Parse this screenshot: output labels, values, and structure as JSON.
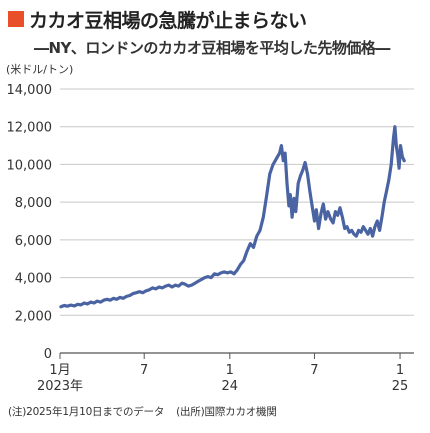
{
  "title": "カカオ豆相場の急騰が止まらない",
  "subtitle": "―NY、ロンドンのカカオ豆相場を平均した先物価格―",
  "note": "(注)2025年1月10日までのデータ",
  "source": "(出所)国際カカオ機関",
  "colors": {
    "title_marker": "#e8502a",
    "line": "#4a63a3",
    "grid": "#c8c8c8",
    "axis": "#555555"
  },
  "chart_data": {
    "type": "line",
    "title": "カカオ豆相場の急騰が止まらない",
    "subtitle": "―NY、ロンドンのカカオ豆相場を平均した先物価格―",
    "ylabel": "(米ドル/トン)",
    "xlabel": "",
    "ylim": [
      0,
      14000
    ],
    "y_ticks": [
      0,
      2000,
      4000,
      6000,
      8000,
      10000,
      12000,
      14000
    ],
    "y_tick_labels": [
      "0",
      "2,000",
      "4,000",
      "6,000",
      "8,000",
      "10,000",
      "12,000",
      "14,000"
    ],
    "xlim": [
      "2023-01-01",
      "2025-01-31"
    ],
    "x_ticks": [
      {
        "date": "2023-01-01",
        "label": "1月",
        "sublabel": "2023年"
      },
      {
        "date": "2023-07-01",
        "label": "7",
        "sublabel": ""
      },
      {
        "date": "2024-01-01",
        "label": "1",
        "sublabel": "24"
      },
      {
        "date": "2024-07-01",
        "label": "7",
        "sublabel": ""
      },
      {
        "date": "2025-01-01",
        "label": "1",
        "sublabel": "25"
      }
    ],
    "grid": "horizontal",
    "series": [
      {
        "points": [
          [
            "2023-01-03",
            2450
          ],
          [
            "2023-01-10",
            2520
          ],
          [
            "2023-01-17",
            2480
          ],
          [
            "2023-01-24",
            2540
          ],
          [
            "2023-02-01",
            2500
          ],
          [
            "2023-02-08",
            2580
          ],
          [
            "2023-02-15",
            2550
          ],
          [
            "2023-02-22",
            2650
          ],
          [
            "2023-03-01",
            2600
          ],
          [
            "2023-03-08",
            2700
          ],
          [
            "2023-03-15",
            2650
          ],
          [
            "2023-03-22",
            2750
          ],
          [
            "2023-03-29",
            2700
          ],
          [
            "2023-04-05",
            2800
          ],
          [
            "2023-04-12",
            2850
          ],
          [
            "2023-04-19",
            2800
          ],
          [
            "2023-04-26",
            2900
          ],
          [
            "2023-05-03",
            2850
          ],
          [
            "2023-05-10",
            2950
          ],
          [
            "2023-05-17",
            2900
          ],
          [
            "2023-05-24",
            3000
          ],
          [
            "2023-05-31",
            3050
          ],
          [
            "2023-06-07",
            3150
          ],
          [
            "2023-06-14",
            3200
          ],
          [
            "2023-06-21",
            3250
          ],
          [
            "2023-06-28",
            3200
          ],
          [
            "2023-07-05",
            3300
          ],
          [
            "2023-07-12",
            3350
          ],
          [
            "2023-07-19",
            3450
          ],
          [
            "2023-07-26",
            3400
          ],
          [
            "2023-08-02",
            3500
          ],
          [
            "2023-08-09",
            3450
          ],
          [
            "2023-08-16",
            3550
          ],
          [
            "2023-08-23",
            3600
          ],
          [
            "2023-08-30",
            3500
          ],
          [
            "2023-09-06",
            3600
          ],
          [
            "2023-09-13",
            3550
          ],
          [
            "2023-09-20",
            3700
          ],
          [
            "2023-09-27",
            3650
          ],
          [
            "2023-10-04",
            3550
          ],
          [
            "2023-10-11",
            3600
          ],
          [
            "2023-10-18",
            3700
          ],
          [
            "2023-10-25",
            3800
          ],
          [
            "2023-11-01",
            3900
          ],
          [
            "2023-11-08",
            4000
          ],
          [
            "2023-11-15",
            4050
          ],
          [
            "2023-11-22",
            4000
          ],
          [
            "2023-11-29",
            4200
          ],
          [
            "2023-12-06",
            4150
          ],
          [
            "2023-12-13",
            4250
          ],
          [
            "2023-12-20",
            4300
          ],
          [
            "2023-12-27",
            4250
          ],
          [
            "2024-01-03",
            4300
          ],
          [
            "2024-01-10",
            4200
          ],
          [
            "2024-01-17",
            4400
          ],
          [
            "2024-01-24",
            4700
          ],
          [
            "2024-01-31",
            4900
          ],
          [
            "2024-02-07",
            5400
          ],
          [
            "2024-02-14",
            5800
          ],
          [
            "2024-02-21",
            5600
          ],
          [
            "2024-02-28",
            6200
          ],
          [
            "2024-03-06",
            6500
          ],
          [
            "2024-03-13",
            7200
          ],
          [
            "2024-03-20",
            8300
          ],
          [
            "2024-03-27",
            9500
          ],
          [
            "2024-04-03",
            10000
          ],
          [
            "2024-04-10",
            10300
          ],
          [
            "2024-04-17",
            10600
          ],
          [
            "2024-04-21",
            11000
          ],
          [
            "2024-04-25",
            10200
          ],
          [
            "2024-04-29",
            10600
          ],
          [
            "2024-05-03",
            9000
          ],
          [
            "2024-05-07",
            7800
          ],
          [
            "2024-05-10",
            8400
          ],
          [
            "2024-05-14",
            7200
          ],
          [
            "2024-05-18",
            8200
          ],
          [
            "2024-05-22",
            7500
          ],
          [
            "2024-05-27",
            9000
          ],
          [
            "2024-06-01",
            9400
          ],
          [
            "2024-06-06",
            9700
          ],
          [
            "2024-06-11",
            10100
          ],
          [
            "2024-06-16",
            9500
          ],
          [
            "2024-06-21",
            8600
          ],
          [
            "2024-06-26",
            7800
          ],
          [
            "2024-07-01",
            7000
          ],
          [
            "2024-07-05",
            7600
          ],
          [
            "2024-07-10",
            6600
          ],
          [
            "2024-07-15",
            7400
          ],
          [
            "2024-07-20",
            7900
          ],
          [
            "2024-07-25",
            7100
          ],
          [
            "2024-07-30",
            7500
          ],
          [
            "2024-08-05",
            7100
          ],
          [
            "2024-08-10",
            6900
          ],
          [
            "2024-08-15",
            7500
          ],
          [
            "2024-08-20",
            7300
          ],
          [
            "2024-08-25",
            7700
          ],
          [
            "2024-08-30",
            7200
          ],
          [
            "2024-09-04",
            6600
          ],
          [
            "2024-09-09",
            6700
          ],
          [
            "2024-09-14",
            6400
          ],
          [
            "2024-09-19",
            6500
          ],
          [
            "2024-09-24",
            6300
          ],
          [
            "2024-09-29",
            6200
          ],
          [
            "2024-10-04",
            6500
          ],
          [
            "2024-10-09",
            6400
          ],
          [
            "2024-10-14",
            6700
          ],
          [
            "2024-10-19",
            6500
          ],
          [
            "2024-10-24",
            6300
          ],
          [
            "2024-10-29",
            6600
          ],
          [
            "2024-11-03",
            6200
          ],
          [
            "2024-11-08",
            6700
          ],
          [
            "2024-11-13",
            7000
          ],
          [
            "2024-11-18",
            6500
          ],
          [
            "2024-11-23",
            7200
          ],
          [
            "2024-11-28",
            8000
          ],
          [
            "2024-12-03",
            8600
          ],
          [
            "2024-12-08",
            9200
          ],
          [
            "2024-12-13",
            10000
          ],
          [
            "2024-12-18",
            11400
          ],
          [
            "2024-12-21",
            12000
          ],
          [
            "2024-12-24",
            11000
          ],
          [
            "2024-12-27",
            10500
          ],
          [
            "2024-12-30",
            9800
          ],
          [
            "2025-01-02",
            11000
          ],
          [
            "2025-01-06",
            10400
          ],
          [
            "2025-01-10",
            10200
          ]
        ]
      }
    ]
  }
}
